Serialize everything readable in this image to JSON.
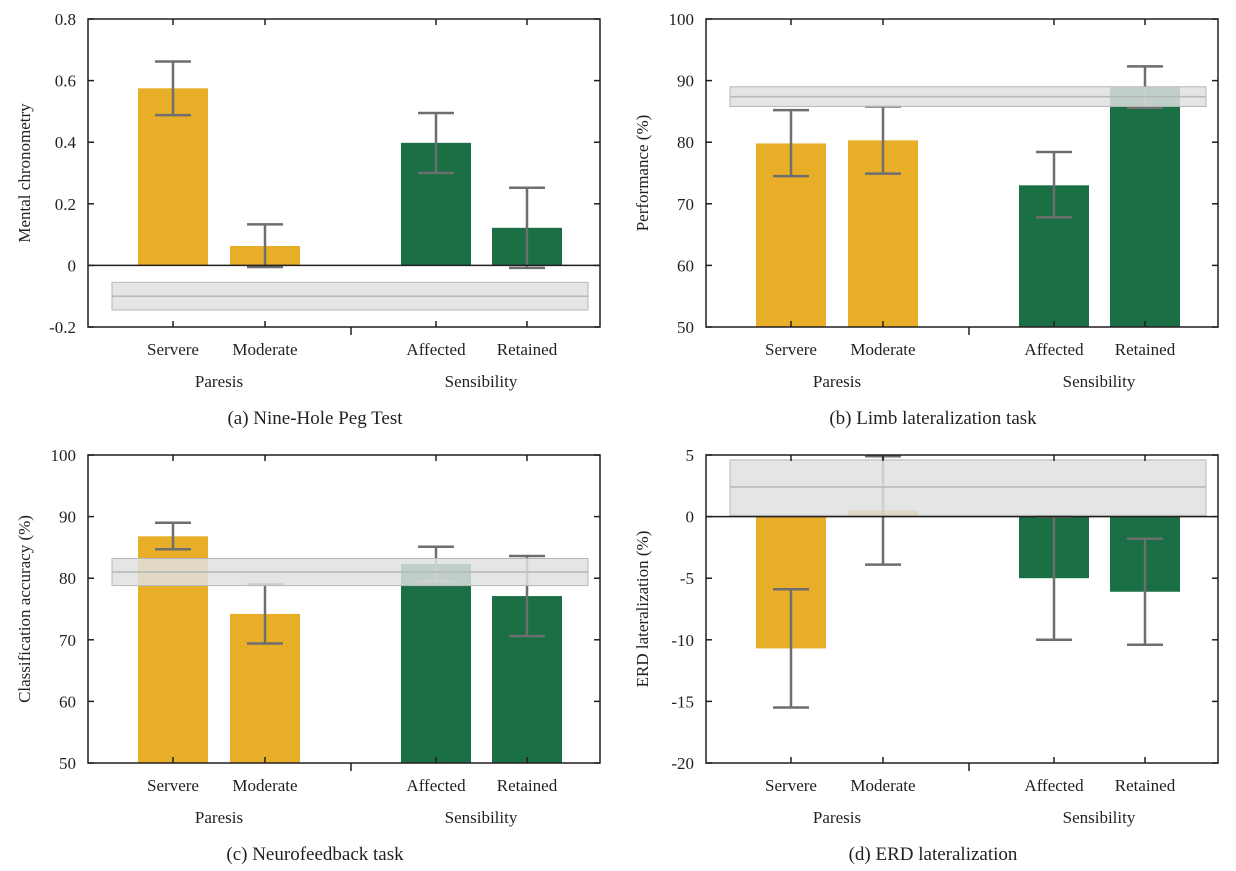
{
  "colors": {
    "paresis": "#e9ae28",
    "sensibility": "#1a6f44",
    "error_bar": "#6d6e70",
    "band_fill": "#dfe1e0",
    "band_edge": "#b5b8b7",
    "axis": "#231f20"
  },
  "chart_data": [
    {
      "type": "bar",
      "caption": "(a) Nine-Hole Peg Test",
      "ylabel": "Mental chronometry",
      "categories": [
        "Servere",
        "Moderate",
        "Affected",
        "Retained"
      ],
      "groups": [
        "Paresis",
        "Sensibility"
      ],
      "values": [
        0.575,
        0.063,
        0.398,
        0.122
      ],
      "error_low": [
        0.488,
        -0.005,
        0.3,
        -0.008
      ],
      "error_high": [
        0.662,
        0.133,
        0.495,
        0.252
      ],
      "band": {
        "low": -0.145,
        "mid": -0.1,
        "high": -0.055
      },
      "ylim": [
        -0.2,
        0.8
      ],
      "yticks": [
        -0.2,
        0,
        0.2,
        0.4,
        0.6,
        0.8
      ],
      "ytick_labels": [
        "-0.2",
        "0",
        "0.2",
        "0.4",
        "0.6",
        "0.8"
      ]
    },
    {
      "type": "bar",
      "caption": "(b) Limb lateralization task",
      "ylabel": "Performance (%)",
      "categories": [
        "Servere",
        "Moderate",
        "Affected",
        "Retained"
      ],
      "groups": [
        "Paresis",
        "Sensibility"
      ],
      "values": [
        79.8,
        80.3,
        73.0,
        88.9
      ],
      "error_low": [
        74.5,
        74.9,
        67.8,
        85.6
      ],
      "error_high": [
        85.2,
        85.8,
        78.4,
        92.3
      ],
      "band": {
        "low": 85.8,
        "mid": 87.4,
        "high": 89.0
      },
      "ylim": [
        50,
        100
      ],
      "yticks": [
        50,
        60,
        70,
        80,
        90,
        100
      ],
      "ytick_labels": [
        "50",
        "60",
        "70",
        "80",
        "90",
        "100"
      ]
    },
    {
      "type": "bar",
      "caption": "(c) Neurofeedback task",
      "ylabel": "Classification accuracy (%)",
      "categories": [
        "Servere",
        "Moderate",
        "Affected",
        "Retained"
      ],
      "groups": [
        "Paresis",
        "Sensibility"
      ],
      "values": [
        86.8,
        74.2,
        82.3,
        77.1
      ],
      "error_low": [
        84.7,
        69.4,
        79.5,
        70.6
      ],
      "error_high": [
        89.0,
        79.0,
        85.1,
        83.6
      ],
      "band": {
        "low": 78.8,
        "mid": 81.0,
        "high": 83.2
      },
      "ylim": [
        50,
        100
      ],
      "yticks": [
        50,
        60,
        70,
        80,
        90,
        100
      ],
      "ytick_labels": [
        "50",
        "60",
        "70",
        "80",
        "90",
        "100"
      ]
    },
    {
      "type": "bar",
      "caption": "(d) ERD lateralization",
      "ylabel": "ERD lateralization (%)",
      "categories": [
        "Servere",
        "Moderate",
        "Affected",
        "Retained"
      ],
      "groups": [
        "Paresis",
        "Sensibility"
      ],
      "values": [
        -10.7,
        0.5,
        -5.0,
        -6.1
      ],
      "error_low": [
        -15.5,
        -3.9,
        -10.0,
        -10.4
      ],
      "error_high": [
        -5.9,
        4.9,
        0.0,
        -1.8
      ],
      "band": {
        "low": 0.1,
        "mid": 2.4,
        "high": 4.6
      },
      "ylim": [
        -20,
        5
      ],
      "yticks": [
        -20,
        -15,
        -10,
        -5,
        0,
        5
      ],
      "ytick_labels": [
        "-20",
        "-15",
        "-10",
        "-5",
        "0",
        "5"
      ]
    }
  ]
}
